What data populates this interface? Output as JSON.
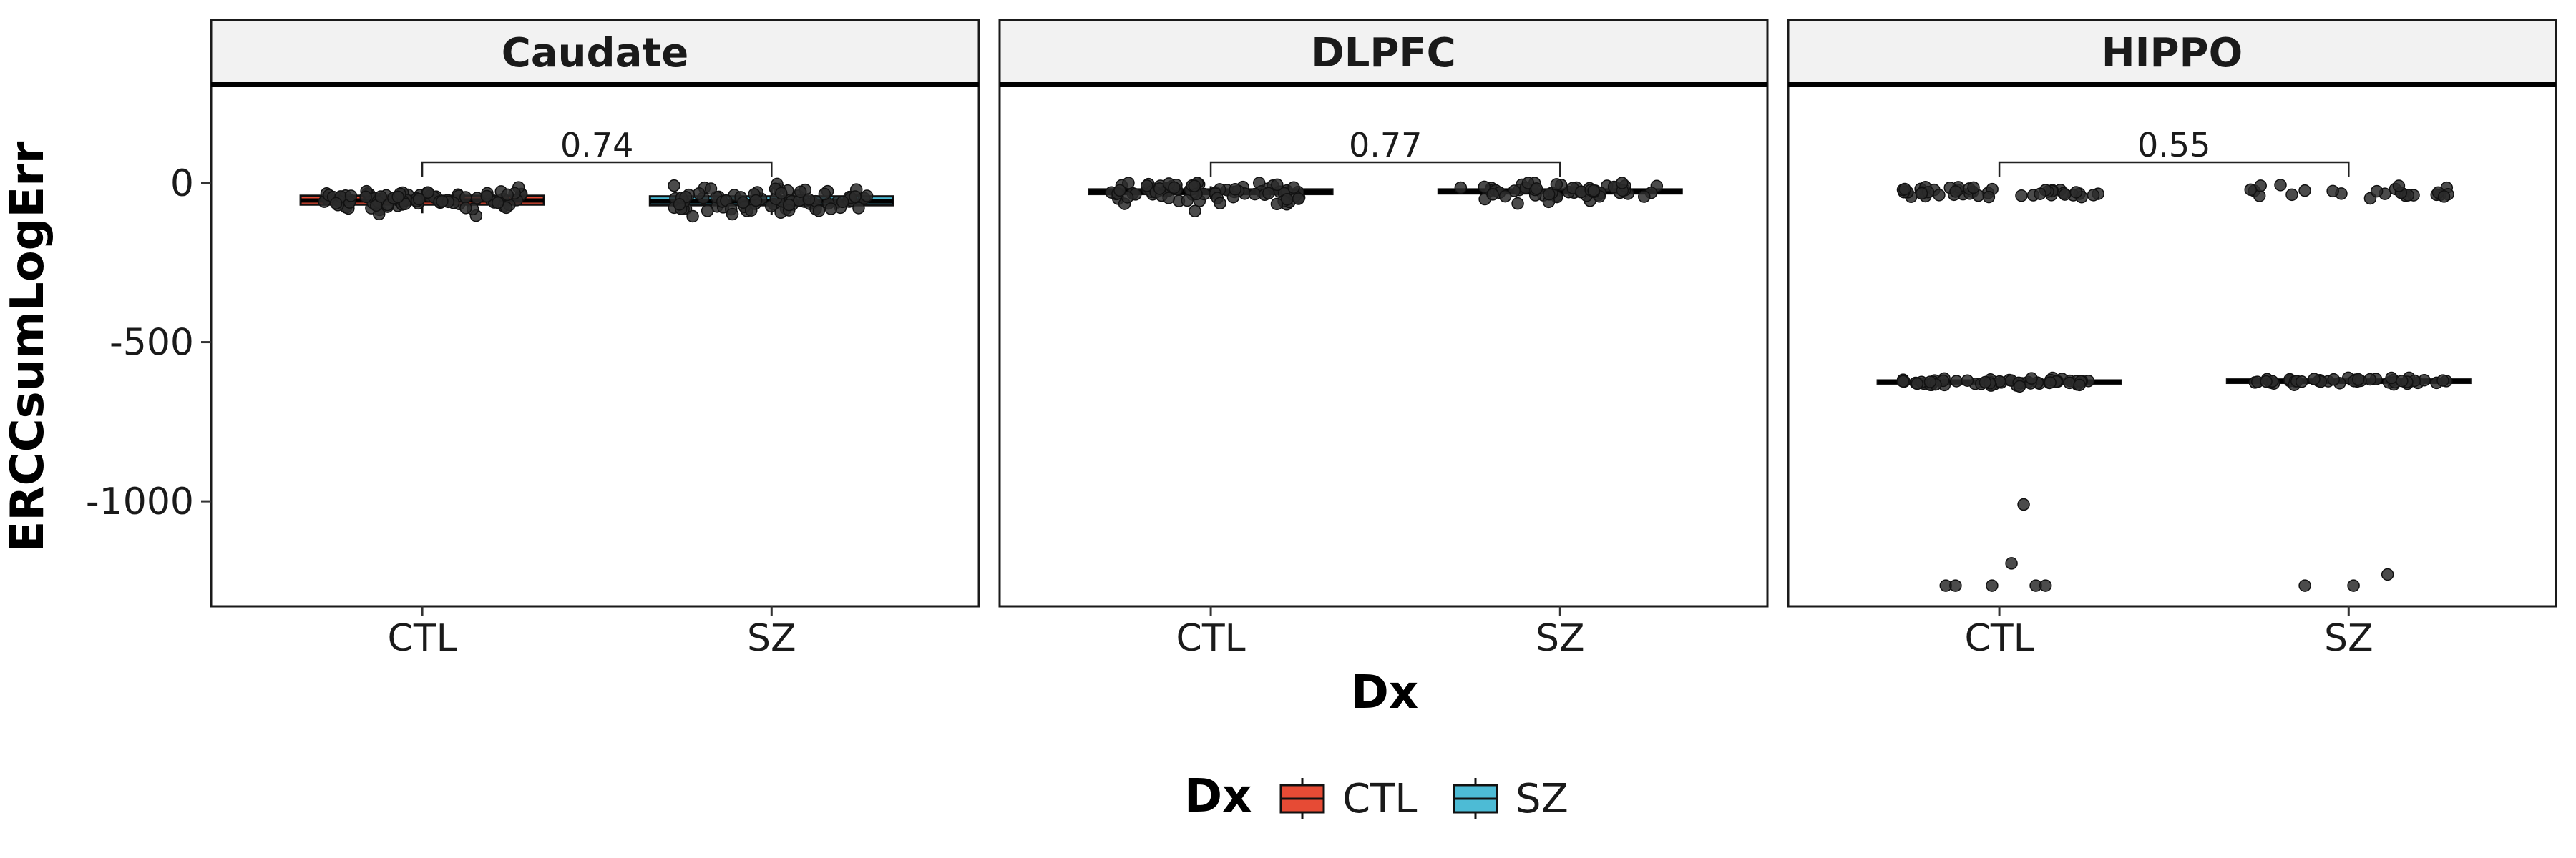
{
  "chart_data": {
    "type": "box",
    "facet_var": "region",
    "facets": [
      "Caudate",
      "DLPFC",
      "HIPPO"
    ],
    "categories": [
      "CTL",
      "SZ"
    ],
    "xlabel": "Dx",
    "ylabel": "ERCCsumLogErr",
    "ylim": [
      -1330,
      310
    ],
    "yticks": [
      0,
      -500,
      -1000
    ],
    "ytick_labels": [
      "0",
      "-500",
      "-1000"
    ],
    "legend": {
      "title": "Dx",
      "position": "bottom",
      "entries": [
        {
          "label": "CTL",
          "color": "#E64B35"
        },
        {
          "label": "SZ",
          "color": "#4DBBD5"
        }
      ]
    },
    "comparisons": [
      {
        "facet": "Caudate",
        "group1": "CTL",
        "group2": "SZ",
        "p_label": "0.74",
        "y": 65
      },
      {
        "facet": "DLPFC",
        "group1": "CTL",
        "group2": "SZ",
        "p_label": "0.77",
        "y": 65
      },
      {
        "facet": "HIPPO",
        "group1": "CTL",
        "group2": "SZ",
        "p_label": "0.55",
        "y": 65
      }
    ],
    "boxes": [
      {
        "facet": "Caudate",
        "group": "CTL",
        "q1": -68,
        "median": -55,
        "q3": -40,
        "whisker_low": -95,
        "whisker_high": -20
      },
      {
        "facet": "Caudate",
        "group": "SZ",
        "q1": -70,
        "median": -58,
        "q3": -42,
        "whisker_low": -100,
        "whisker_high": -15
      },
      {
        "facet": "DLPFC",
        "group": "CTL",
        "q1": -35,
        "median": -28,
        "q3": -20,
        "whisker_low": -50,
        "whisker_high": -10
      },
      {
        "facet": "DLPFC",
        "group": "SZ",
        "q1": -33,
        "median": -27,
        "q3": -20,
        "whisker_low": -45,
        "whisker_high": -10
      },
      {
        "facet": "HIPPO",
        "group": "CTL",
        "q1": -630,
        "median": -625,
        "q3": -620,
        "whisker_low": -640,
        "whisker_high": -610
      },
      {
        "facet": "HIPPO",
        "group": "SZ",
        "q1": -628,
        "median": -622,
        "q3": -617,
        "whisker_low": -636,
        "whisker_high": -610
      }
    ],
    "point_clusters": [
      {
        "facet": "Caudate",
        "group": "CTL",
        "n": 95,
        "center": -55,
        "spread": 18,
        "min": -110,
        "max": -10
      },
      {
        "facet": "Caudate",
        "group": "SZ",
        "n": 80,
        "center": -55,
        "spread": 22,
        "min": -120,
        "max": 5
      },
      {
        "facet": "DLPFC",
        "group": "CTL",
        "n": 75,
        "center": -30,
        "spread": 20,
        "min": -130,
        "max": 0
      },
      {
        "facet": "DLPFC",
        "group": "SZ",
        "n": 55,
        "center": -25,
        "spread": 15,
        "min": -140,
        "max": 0
      },
      {
        "facet": "HIPPO",
        "group": "CTL",
        "n": 45,
        "center": -30,
        "spread": 10,
        "min": -85,
        "max": -10
      },
      {
        "facet": "HIPPO",
        "group": "CTL",
        "n": 55,
        "center": -625,
        "spread": 6,
        "min": -645,
        "max": -612
      },
      {
        "facet": "HIPPO",
        "group": "SZ",
        "n": 25,
        "center": -30,
        "spread": 10,
        "min": -85,
        "max": -5
      },
      {
        "facet": "HIPPO",
        "group": "SZ",
        "n": 45,
        "center": -623,
        "spread": 6,
        "min": -642,
        "max": -612
      }
    ],
    "points": [
      {
        "facet": "HIPPO",
        "group": "CTL",
        "jitter": -0.22,
        "y": -1265
      },
      {
        "facet": "HIPPO",
        "group": "CTL",
        "jitter": -0.18,
        "y": -1265
      },
      {
        "facet": "HIPPO",
        "group": "CTL",
        "jitter": -0.03,
        "y": -1265
      },
      {
        "facet": "HIPPO",
        "group": "CTL",
        "jitter": 0.05,
        "y": -1195
      },
      {
        "facet": "HIPPO",
        "group": "CTL",
        "jitter": 0.1,
        "y": -1010
      },
      {
        "facet": "HIPPO",
        "group": "CTL",
        "jitter": 0.15,
        "y": -1265
      },
      {
        "facet": "HIPPO",
        "group": "CTL",
        "jitter": 0.19,
        "y": -1265
      },
      {
        "facet": "HIPPO",
        "group": "SZ",
        "jitter": -0.18,
        "y": -1265
      },
      {
        "facet": "HIPPO",
        "group": "SZ",
        "jitter": 0.02,
        "y": -1265
      },
      {
        "facet": "HIPPO",
        "group": "SZ",
        "jitter": 0.16,
        "y": -1230
      }
    ]
  }
}
